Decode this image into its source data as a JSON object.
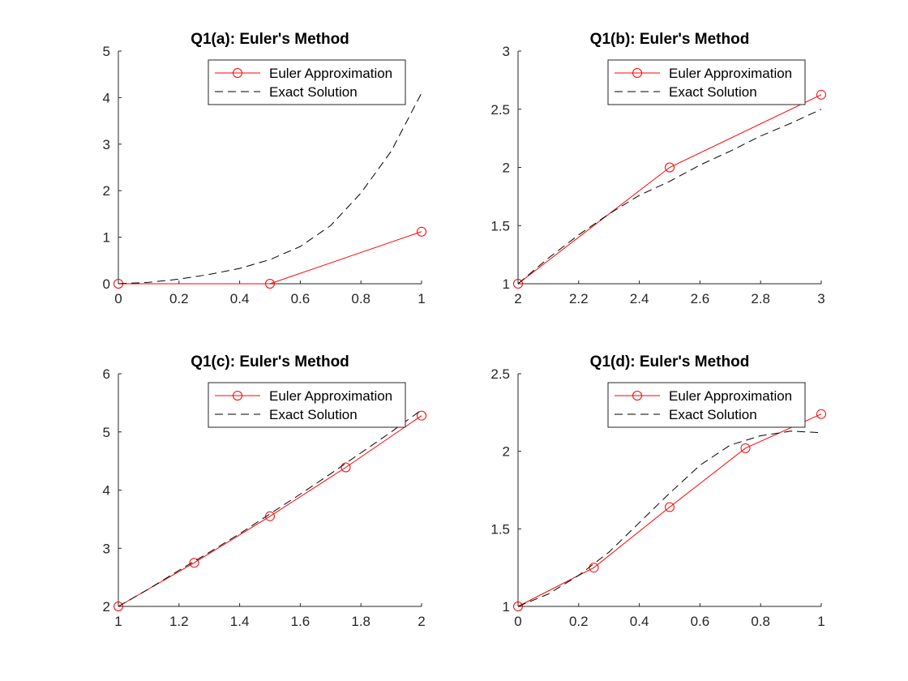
{
  "figure": {
    "background": "#ffffff"
  },
  "chart_data": [
    {
      "type": "line",
      "title": "Q1(a): Euler's Method",
      "xlim": [
        0,
        1
      ],
      "ylim": [
        0,
        5
      ],
      "xticks": [
        0,
        0.2,
        0.4,
        0.6,
        0.8,
        1
      ],
      "xtick_labels": [
        "0",
        "0.2",
        "0.4",
        "0.6",
        "0.8",
        "1"
      ],
      "yticks": [
        0,
        1,
        2,
        3,
        4,
        5
      ],
      "ytick_labels": [
        "0",
        "1",
        "2",
        "3",
        "4",
        "5"
      ],
      "legend_position": "top-right",
      "grid": false,
      "series": [
        {
          "name": "Euler Approximation",
          "color": "#ff0000",
          "style": "solid",
          "marker": "circle",
          "x": [
            0,
            0.5,
            1
          ],
          "y": [
            0,
            0,
            1.12
          ]
        },
        {
          "name": "Exact Solution",
          "color": "#000000",
          "style": "dashed",
          "marker": "none",
          "x": [
            0,
            0.1,
            0.2,
            0.3,
            0.4,
            0.5,
            0.6,
            0.7,
            0.8,
            0.9,
            1
          ],
          "y": [
            0,
            0.03,
            0.1,
            0.2,
            0.33,
            0.52,
            0.8,
            1.25,
            1.95,
            2.85,
            4.1
          ]
        }
      ]
    },
    {
      "type": "line",
      "title": "Q1(b): Euler's Method",
      "xlim": [
        2,
        3
      ],
      "ylim": [
        1,
        3
      ],
      "xticks": [
        2,
        2.2,
        2.4,
        2.6,
        2.8,
        3
      ],
      "xtick_labels": [
        "2",
        "2.2",
        "2.4",
        "2.6",
        "2.8",
        "3"
      ],
      "yticks": [
        1,
        1.5,
        2,
        2.5,
        3
      ],
      "ytick_labels": [
        "1",
        "1.5",
        "2",
        "2.5",
        "3"
      ],
      "legend_position": "top-right",
      "grid": false,
      "series": [
        {
          "name": "Euler Approximation",
          "color": "#ff0000",
          "style": "solid",
          "marker": "circle",
          "x": [
            2,
            2.5,
            3
          ],
          "y": [
            1,
            2,
            2.625
          ]
        },
        {
          "name": "Exact Solution",
          "color": "#000000",
          "style": "dashed",
          "marker": "none",
          "x": [
            2,
            2.1,
            2.2,
            2.3,
            2.4,
            2.5,
            2.6,
            2.7,
            2.8,
            2.9,
            3
          ],
          "y": [
            1,
            1.22,
            1.42,
            1.6,
            1.76,
            1.88,
            2.02,
            2.14,
            2.27,
            2.38,
            2.5
          ]
        }
      ]
    },
    {
      "type": "line",
      "title": "Q1(c): Euler's Method",
      "xlim": [
        1,
        2
      ],
      "ylim": [
        2,
        6
      ],
      "xticks": [
        1,
        1.2,
        1.4,
        1.6,
        1.8,
        2
      ],
      "xtick_labels": [
        "1",
        "1.2",
        "1.4",
        "1.6",
        "1.8",
        "2"
      ],
      "yticks": [
        2,
        3,
        4,
        5,
        6
      ],
      "ytick_labels": [
        "2",
        "3",
        "4",
        "5",
        "6"
      ],
      "legend_position": "top-right",
      "grid": false,
      "series": [
        {
          "name": "Euler Approximation",
          "color": "#ff0000",
          "style": "solid",
          "marker": "circle",
          "x": [
            1,
            1.25,
            1.5,
            1.75,
            2
          ],
          "y": [
            2,
            2.75,
            3.55,
            4.39,
            5.28
          ]
        },
        {
          "name": "Exact Solution",
          "color": "#000000",
          "style": "dashed",
          "marker": "none",
          "x": [
            1,
            1.1,
            1.2,
            1.3,
            1.4,
            1.5,
            1.6,
            1.7,
            1.8,
            1.9,
            2
          ],
          "y": [
            2,
            2.3,
            2.62,
            2.93,
            3.25,
            3.59,
            3.93,
            4.28,
            4.64,
            5.0,
            5.38
          ]
        }
      ]
    },
    {
      "type": "line",
      "title": "Q1(d): Euler's Method",
      "xlim": [
        0,
        1
      ],
      "ylim": [
        1,
        2.5
      ],
      "xticks": [
        0,
        0.2,
        0.4,
        0.6,
        0.8,
        1
      ],
      "xtick_labels": [
        "0",
        "0.2",
        "0.4",
        "0.6",
        "0.8",
        "1"
      ],
      "yticks": [
        1,
        1.5,
        2,
        2.5
      ],
      "ytick_labels": [
        "1",
        "1.5",
        "2",
        "2.5"
      ],
      "legend_position": "top-right",
      "grid": false,
      "series": [
        {
          "name": "Euler Approximation",
          "color": "#ff0000",
          "style": "solid",
          "marker": "circle",
          "x": [
            0,
            0.25,
            0.5,
            0.75,
            1
          ],
          "y": [
            1,
            1.25,
            1.64,
            2.02,
            2.24
          ]
        },
        {
          "name": "Exact Solution",
          "color": "#000000",
          "style": "dashed",
          "marker": "none",
          "x": [
            0,
            0.1,
            0.2,
            0.3,
            0.4,
            0.5,
            0.6,
            0.7,
            0.8,
            0.9,
            1
          ],
          "y": [
            1,
            1.08,
            1.2,
            1.35,
            1.54,
            1.73,
            1.91,
            2.04,
            2.1,
            2.13,
            2.12
          ]
        }
      ]
    }
  ]
}
